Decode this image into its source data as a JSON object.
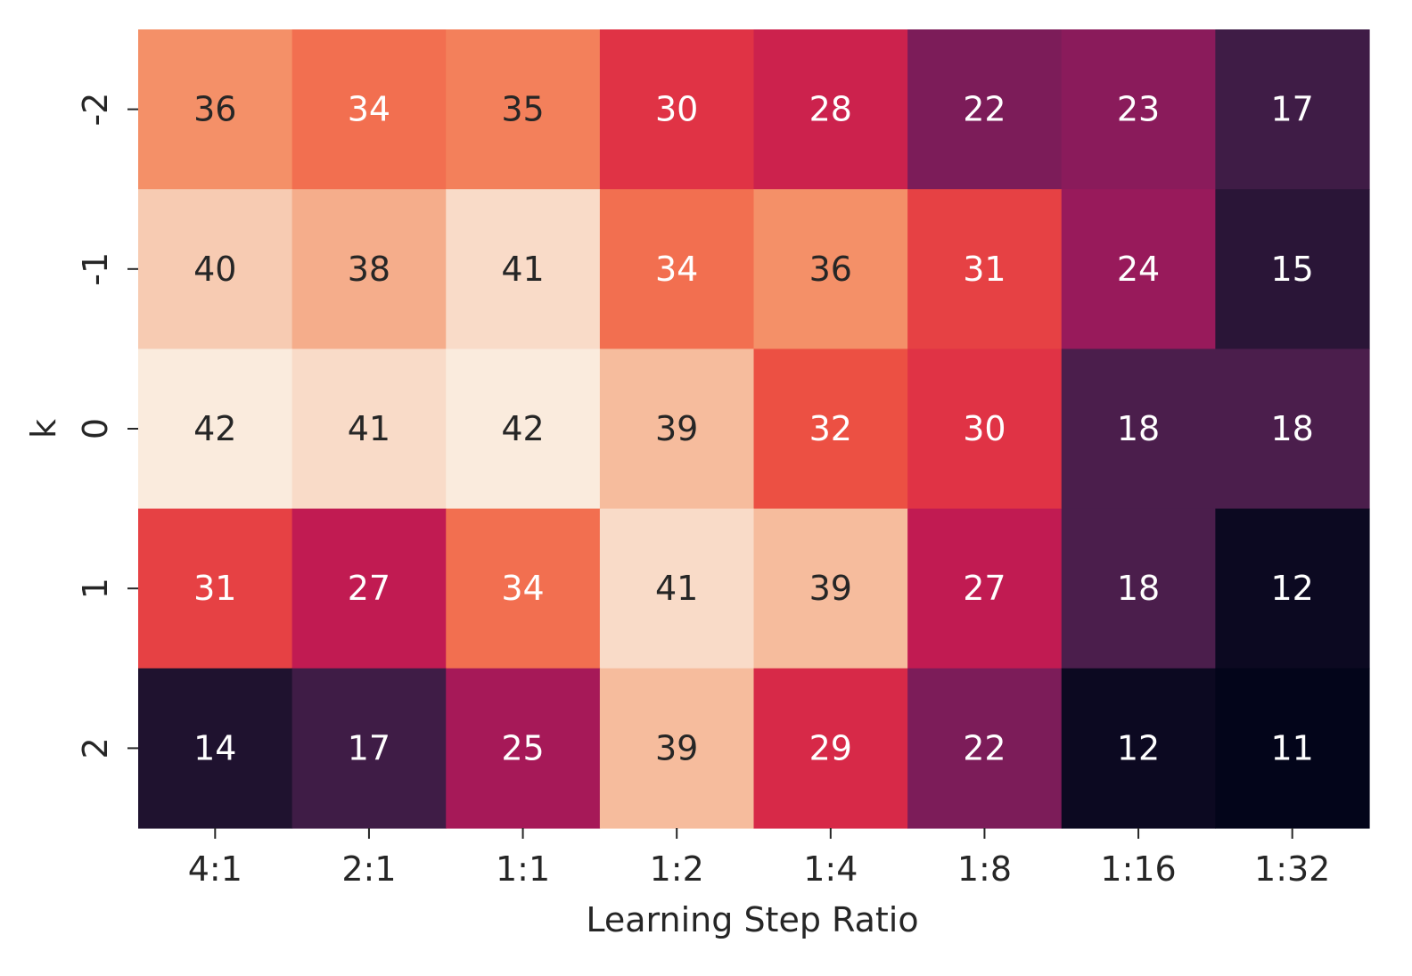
{
  "chart_data": {
    "type": "heatmap",
    "xlabel": "Learning Step Ratio",
    "ylabel": "k",
    "x_categories": [
      "4:1",
      "2:1",
      "1:1",
      "1:2",
      "1:4",
      "1:8",
      "1:16",
      "1:32"
    ],
    "y_categories": [
      "-2",
      "-1",
      "0",
      "1",
      "2"
    ],
    "values": [
      [
        36,
        34,
        35,
        30,
        28,
        22,
        23,
        17
      ],
      [
        40,
        38,
        41,
        34,
        36,
        31,
        24,
        15
      ],
      [
        42,
        41,
        42,
        39,
        32,
        30,
        18,
        18
      ],
      [
        31,
        27,
        34,
        41,
        39,
        27,
        18,
        12
      ],
      [
        14,
        17,
        25,
        39,
        29,
        22,
        12,
        11
      ]
    ],
    "colormap": "rocket",
    "value_range": [
      11,
      42
    ],
    "annotations": true,
    "colorbar": false,
    "grid": false
  }
}
